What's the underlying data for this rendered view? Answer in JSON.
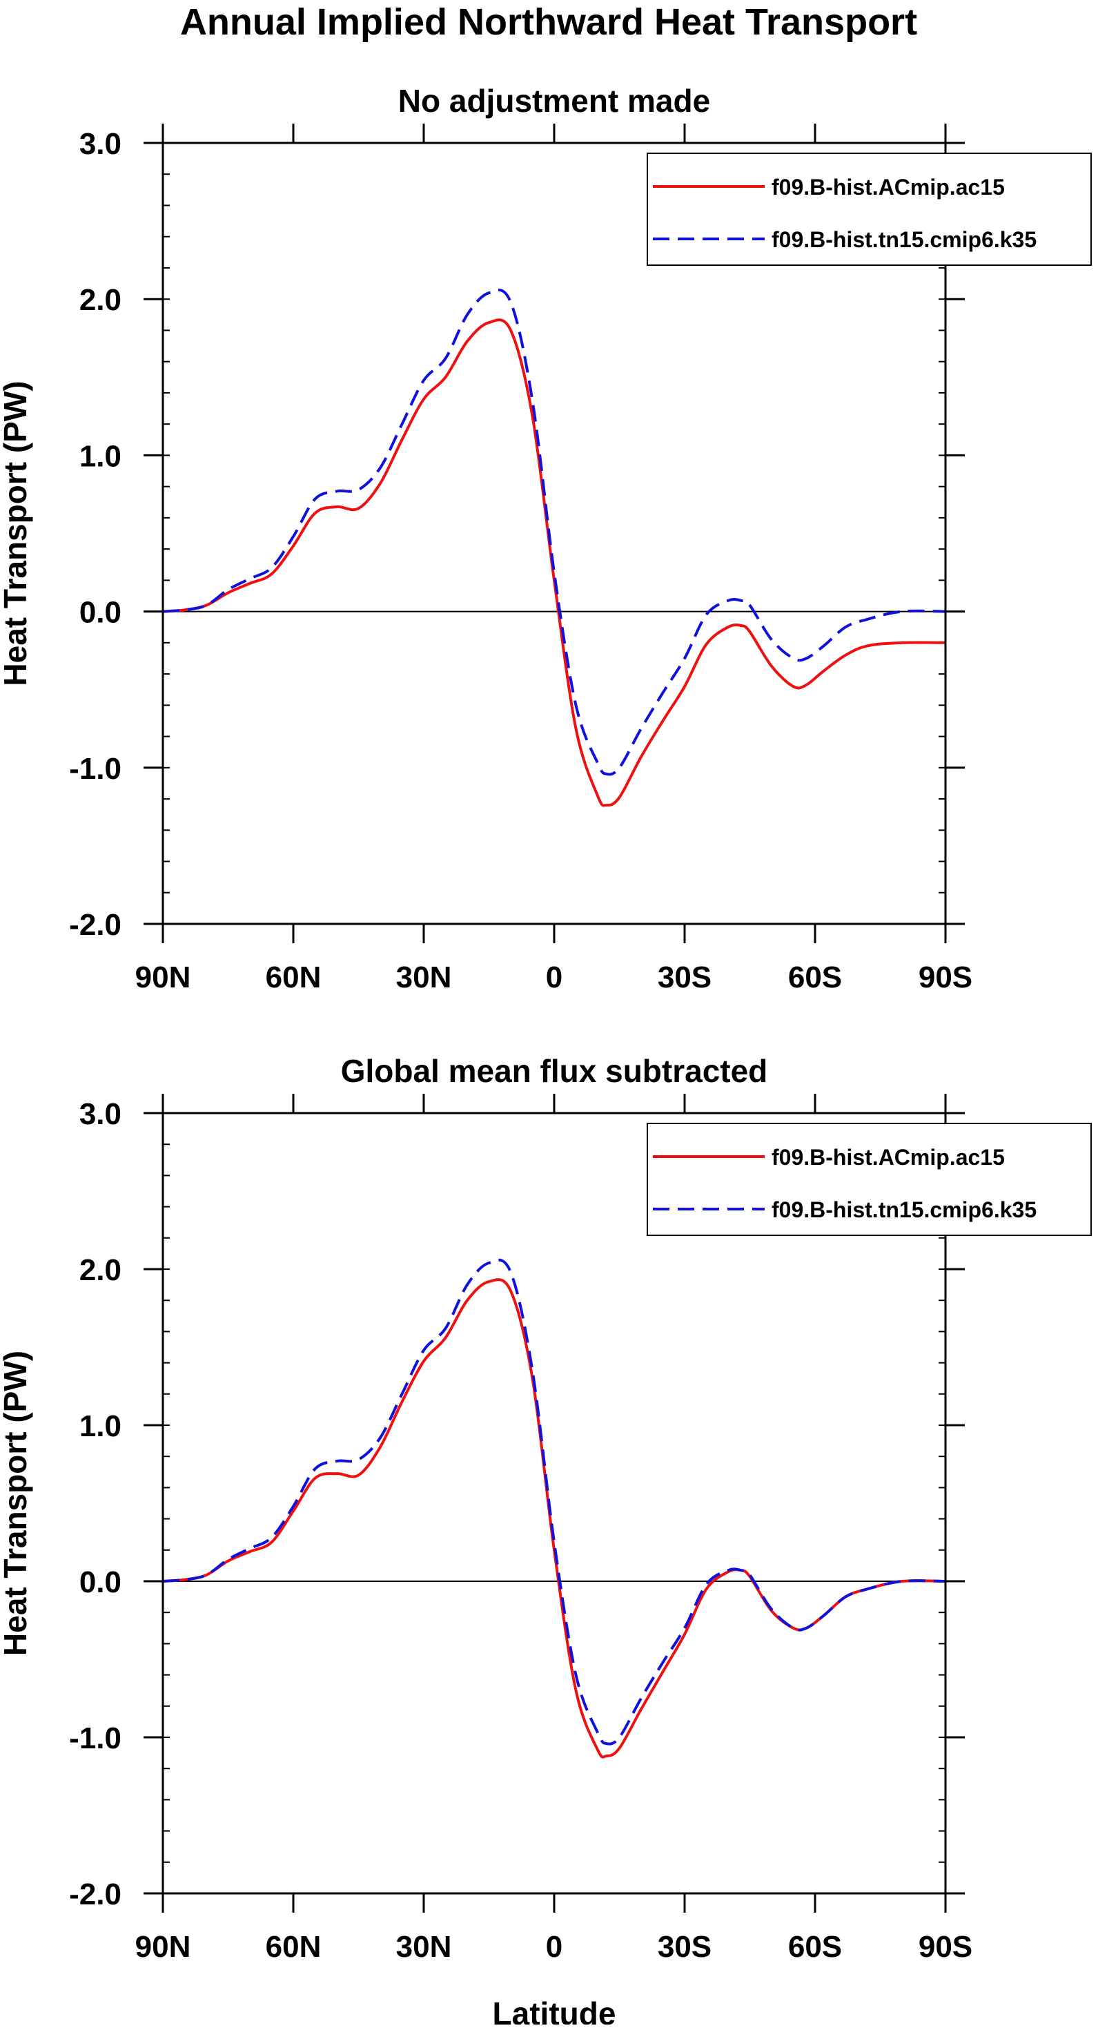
{
  "title": "Annual Implied Northward Heat Transport",
  "chart_data": {
    "type": "line",
    "xlabel": "Latitude",
    "ylabel": "Heat Transport (PW)",
    "xlim": [
      90,
      -90
    ],
    "ylim": [
      -2.0,
      3.0
    ],
    "x_ticks": [
      90,
      60,
      30,
      0,
      -30,
      -60,
      -90
    ],
    "x_tick_labels": [
      "90N",
      "60N",
      "30N",
      "0",
      "30S",
      "60S",
      "90S"
    ],
    "y_ticks": [
      3.0,
      2.0,
      1.0,
      0.0,
      -1.0,
      -2.0
    ],
    "y_tick_labels": [
      "3.0",
      "2.0",
      "1.0",
      "0.0",
      "-1.0",
      "-2.0"
    ],
    "x": [
      90,
      85,
      80,
      75,
      70,
      65,
      60,
      55,
      50,
      45,
      40,
      35,
      30,
      25,
      20,
      15,
      10,
      5,
      0,
      -5,
      -10,
      -12,
      -15,
      -20,
      -25,
      -30,
      -35,
      -40,
      -43,
      -45,
      -50,
      -55,
      -58,
      -62,
      -67,
      -72,
      -80,
      -90
    ],
    "panels": [
      {
        "title": "No adjustment made",
        "legend": [
          {
            "name": "f09.B-hist.ACmip.ac15",
            "color": "#ee1111",
            "dash": "solid"
          },
          {
            "name": "f09.B-hist.tn15.cmip6.k35",
            "color": "#1111dd",
            "dash": "dashed"
          }
        ],
        "series": [
          {
            "name": "f09.B-hist.ACmip.ac15",
            "color": "#ee1111",
            "values": [
              0.0,
              0.01,
              0.04,
              0.12,
              0.18,
              0.24,
              0.42,
              0.63,
              0.67,
              0.66,
              0.82,
              1.1,
              1.36,
              1.5,
              1.73,
              1.85,
              1.8,
              1.25,
              0.2,
              -0.75,
              -1.18,
              -1.24,
              -1.19,
              -0.93,
              -0.7,
              -0.48,
              -0.21,
              -0.1,
              -0.09,
              -0.13,
              -0.35,
              -0.48,
              -0.47,
              -0.38,
              -0.28,
              -0.22,
              -0.2,
              -0.2
            ]
          },
          {
            "name": "f09.B-hist.tn15.cmip6.k35",
            "color": "#1111dd",
            "values": [
              0.0,
              0.01,
              0.04,
              0.14,
              0.21,
              0.28,
              0.48,
              0.72,
              0.77,
              0.78,
              0.92,
              1.2,
              1.48,
              1.62,
              1.9,
              2.04,
              1.98,
              1.35,
              0.25,
              -0.6,
              -0.97,
              -1.04,
              -1.0,
              -0.75,
              -0.52,
              -0.3,
              -0.02,
              0.07,
              0.07,
              0.04,
              -0.18,
              -0.3,
              -0.3,
              -0.22,
              -0.1,
              -0.05,
              0.0,
              0.0
            ]
          }
        ]
      },
      {
        "title": "Global mean flux subtracted",
        "legend": [
          {
            "name": "f09.B-hist.ACmip.ac15",
            "color": "#ee1111",
            "dash": "solid"
          },
          {
            "name": "f09.B-hist.tn15.cmip6.k35",
            "color": "#1111dd",
            "dash": "dashed"
          }
        ],
        "series": [
          {
            "name": "f09.B-hist.ACmip.ac15",
            "color": "#ee1111",
            "values": [
              0.0,
              0.01,
              0.04,
              0.13,
              0.19,
              0.25,
              0.45,
              0.66,
              0.69,
              0.68,
              0.86,
              1.15,
              1.41,
              1.56,
              1.8,
              1.92,
              1.86,
              1.3,
              0.2,
              -0.7,
              -1.08,
              -1.12,
              -1.07,
              -0.82,
              -0.58,
              -0.34,
              -0.05,
              0.06,
              0.07,
              0.03,
              -0.19,
              -0.3,
              -0.3,
              -0.22,
              -0.1,
              -0.05,
              0.0,
              0.0
            ]
          },
          {
            "name": "f09.B-hist.tn15.cmip6.k35",
            "color": "#1111dd",
            "values": [
              0.0,
              0.01,
              0.04,
              0.14,
              0.21,
              0.28,
              0.48,
              0.72,
              0.77,
              0.78,
              0.92,
              1.2,
              1.48,
              1.62,
              1.9,
              2.04,
              1.98,
              1.35,
              0.25,
              -0.6,
              -0.97,
              -1.04,
              -1.0,
              -0.75,
              -0.52,
              -0.3,
              -0.02,
              0.07,
              0.07,
              0.04,
              -0.18,
              -0.3,
              -0.3,
              -0.22,
              -0.1,
              -0.05,
              0.0,
              0.0
            ]
          }
        ]
      }
    ]
  }
}
